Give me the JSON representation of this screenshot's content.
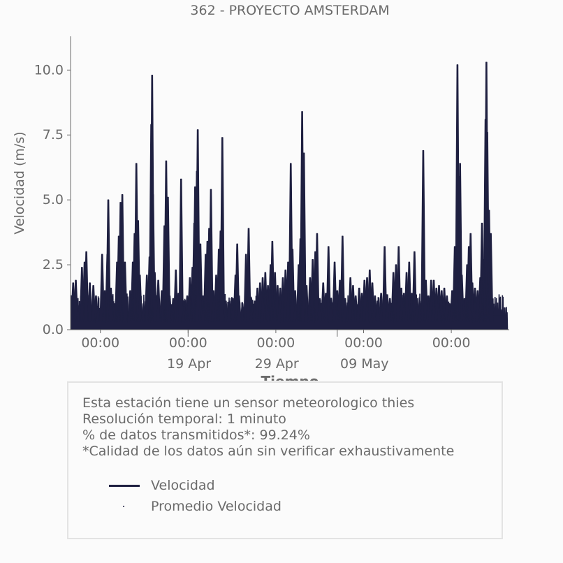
{
  "chart_data": {
    "type": "line",
    "title": "362 - PROYECTO AMSTERDAM",
    "xlabel": "Tiempo",
    "ylabel": "Velocidad (m/s)",
    "ylim": [
      0,
      11.3
    ],
    "y_ticks": [
      "0.0",
      "2.5",
      "5.0",
      "7.5",
      "10.0"
    ],
    "y_tick_values": [
      0,
      2.5,
      5,
      7.5,
      10
    ],
    "x_tick_labels_time": [
      "00:00",
      "00:00",
      "00:00",
      "00:00",
      "00:00"
    ],
    "x_tick_labels_date": [
      "19 Apr",
      "29 Apr",
      "09 May"
    ],
    "x_range_days": [
      0,
      50
    ],
    "x_date_positions_days": [
      13.5,
      23.5,
      33.5
    ],
    "x_time_positions_days": [
      3.4,
      13.4,
      23.4,
      33.4,
      43.4
    ],
    "x_minor_positions_days": [
      13.4,
      30.4
    ],
    "line_color": "#1f2041",
    "grid": false,
    "series": [
      {
        "name": "Velocidad",
        "peaks": [
          [
            0.3,
            1.8
          ],
          [
            0.6,
            1.9
          ],
          [
            0.9,
            0.9
          ],
          [
            1.3,
            2.4
          ],
          [
            1.6,
            2.6
          ],
          [
            1.8,
            3.0
          ],
          [
            2.2,
            1.8
          ],
          [
            2.6,
            1.7
          ],
          [
            2.9,
            1.3
          ],
          [
            3.1,
            0.9
          ],
          [
            3.6,
            2.9
          ],
          [
            3.9,
            1.5
          ],
          [
            4.2,
            2.9
          ],
          [
            4.3,
            5.0
          ],
          [
            4.6,
            1.6
          ],
          [
            5.0,
            1.0
          ],
          [
            5.3,
            2.6
          ],
          [
            5.5,
            3.6
          ],
          [
            5.7,
            4.9
          ],
          [
            5.8,
            2.4
          ],
          [
            5.9,
            5.2
          ],
          [
            6.2,
            2.6
          ],
          [
            6.8,
            1.5
          ],
          [
            7.1,
            2.6
          ],
          [
            7.3,
            3.7
          ],
          [
            7.5,
            6.4
          ],
          [
            7.7,
            4.2
          ],
          [
            7.9,
            2.1
          ],
          [
            8.3,
            1.0
          ],
          [
            8.7,
            2.1
          ],
          [
            9.0,
            2.8
          ],
          [
            9.2,
            7.9
          ],
          [
            9.3,
            9.8
          ],
          [
            9.4,
            5.2
          ],
          [
            9.6,
            2.2
          ],
          [
            10.0,
            1.9
          ],
          [
            10.4,
            1.5
          ],
          [
            10.7,
            4.0
          ],
          [
            10.9,
            6.5
          ],
          [
            11.0,
            2.5
          ],
          [
            11.1,
            5.1
          ],
          [
            11.3,
            1.3
          ],
          [
            11.7,
            1.2
          ],
          [
            12.0,
            2.3
          ],
          [
            12.3,
            1.4
          ],
          [
            12.6,
            5.8
          ],
          [
            12.9,
            1.1
          ],
          [
            13.3,
            1.3
          ],
          [
            13.6,
            2.0
          ],
          [
            13.9,
            2.4
          ],
          [
            14.1,
            4.1
          ],
          [
            14.2,
            5.5
          ],
          [
            14.4,
            6.1
          ],
          [
            14.5,
            7.7
          ],
          [
            14.8,
            3.3
          ],
          [
            15.1,
            1.3
          ],
          [
            15.4,
            2.9
          ],
          [
            15.6,
            3.4
          ],
          [
            15.8,
            3.9
          ],
          [
            16.0,
            5.4
          ],
          [
            16.3,
            1.5
          ],
          [
            16.6,
            2.1
          ],
          [
            16.9,
            3.1
          ],
          [
            17.1,
            3.8
          ],
          [
            17.3,
            7.4
          ],
          [
            17.7,
            1.1
          ],
          [
            18.1,
            1.1
          ],
          [
            18.5,
            1.2
          ],
          [
            18.8,
            2.1
          ],
          [
            19.0,
            3.3
          ],
          [
            19.2,
            1.3
          ],
          [
            19.6,
            1.0
          ],
          [
            20.0,
            2.9
          ],
          [
            20.3,
            3.9
          ],
          [
            20.6,
            1.2
          ],
          [
            21.0,
            1.1
          ],
          [
            21.3,
            1.6
          ],
          [
            21.6,
            1.8
          ],
          [
            21.9,
            2.0
          ],
          [
            22.2,
            2.2
          ],
          [
            22.5,
            1.7
          ],
          [
            22.8,
            2.5
          ],
          [
            23.0,
            3.4
          ],
          [
            23.3,
            2.2
          ],
          [
            23.6,
            1.7
          ],
          [
            23.9,
            1.6
          ],
          [
            24.2,
            2.0
          ],
          [
            24.5,
            2.3
          ],
          [
            24.8,
            2.6
          ],
          [
            25.1,
            6.4
          ],
          [
            25.3,
            3.1
          ],
          [
            25.6,
            1.5
          ],
          [
            26.0,
            2.5
          ],
          [
            26.2,
            3.5
          ],
          [
            26.4,
            8.4
          ],
          [
            26.6,
            6.8
          ],
          [
            26.9,
            1.7
          ],
          [
            27.3,
            2.0
          ],
          [
            27.6,
            2.7
          ],
          [
            27.9,
            3.0
          ],
          [
            28.1,
            3.7
          ],
          [
            28.4,
            1.2
          ],
          [
            28.8,
            1.8
          ],
          [
            29.1,
            1.4
          ],
          [
            29.4,
            3.2
          ],
          [
            29.7,
            1.2
          ],
          [
            30.1,
            2.6
          ],
          [
            30.4,
            1.5
          ],
          [
            30.7,
            1.9
          ],
          [
            31.0,
            3.6
          ],
          [
            31.3,
            1.2
          ],
          [
            31.6,
            1.0
          ],
          [
            31.9,
            2.0
          ],
          [
            32.2,
            1.7
          ],
          [
            32.5,
            1.3
          ],
          [
            32.9,
            1.6
          ],
          [
            33.2,
            1.4
          ],
          [
            33.5,
            1.9
          ],
          [
            33.8,
            2.0
          ],
          [
            34.1,
            2.3
          ],
          [
            34.4,
            1.8
          ],
          [
            34.7,
            1.3
          ],
          [
            35.0,
            1.1
          ],
          [
            35.4,
            1.4
          ],
          [
            35.8,
            3.2
          ],
          [
            36.1,
            1.3
          ],
          [
            36.4,
            1.2
          ],
          [
            36.8,
            2.2
          ],
          [
            37.1,
            2.5
          ],
          [
            37.4,
            3.2
          ],
          [
            37.7,
            1.6
          ],
          [
            38.0,
            1.4
          ],
          [
            38.3,
            2.2
          ],
          [
            38.6,
            2.6
          ],
          [
            38.9,
            1.4
          ],
          [
            39.2,
            3.0
          ],
          [
            39.5,
            1.2
          ],
          [
            39.8,
            1.1
          ],
          [
            40.2,
            6.9
          ],
          [
            40.5,
            1.9
          ],
          [
            40.8,
            1.3
          ],
          [
            41.1,
            1.9
          ],
          [
            41.4,
            1.9
          ],
          [
            41.7,
            1.6
          ],
          [
            42.0,
            1.7
          ],
          [
            42.3,
            1.5
          ],
          [
            42.6,
            1.6
          ],
          [
            42.9,
            1.3
          ],
          [
            43.2,
            1.0
          ],
          [
            43.5,
            1.5
          ],
          [
            43.8,
            3.2
          ],
          [
            44.0,
            3.3
          ],
          [
            44.1,
            10.2
          ],
          [
            44.3,
            5.9
          ],
          [
            44.4,
            6.4
          ],
          [
            44.6,
            2.1
          ],
          [
            44.9,
            1.2
          ],
          [
            45.2,
            2.5
          ],
          [
            45.4,
            3.2
          ],
          [
            45.6,
            3.7
          ],
          [
            45.8,
            1.8
          ],
          [
            46.1,
            1.6
          ],
          [
            46.4,
            1.5
          ],
          [
            46.7,
            2.0
          ],
          [
            46.9,
            4.1
          ],
          [
            47.1,
            2.7
          ],
          [
            47.3,
            8.1
          ],
          [
            47.4,
            10.3
          ],
          [
            47.5,
            7.6
          ],
          [
            47.7,
            4.6
          ],
          [
            47.9,
            3.7
          ]
        ]
      },
      {
        "name": "Promedio Velocidad",
        "values": []
      }
    ]
  },
  "info": {
    "line1": "Esta estación tiene un sensor meteorologico thies",
    "line2": "Resolución temporal: 1 minuto",
    "line3": "% de datos transmitidos*: 99.24%",
    "line4": "*Calidad de los datos aún sin verificar exhaustivamente"
  },
  "legend": {
    "line_label": "Velocidad",
    "marker_label": "Promedio Velocidad"
  }
}
